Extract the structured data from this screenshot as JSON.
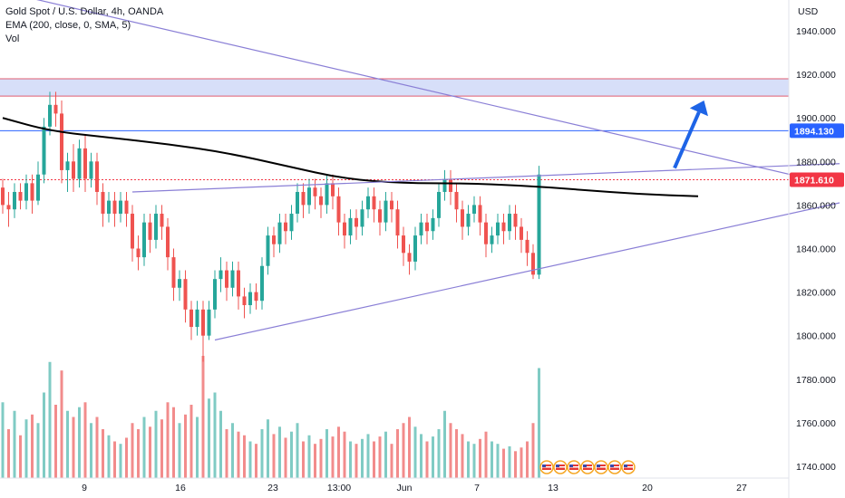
{
  "legend": {
    "symbol": "Gold Spot / U.S. Dollar, 4h, OANDA",
    "indicator": "EMA (200, close, 0, SMA, 5)",
    "volume": "Vol"
  },
  "currency_label": "USD",
  "colors": {
    "up": "#26a69a",
    "down": "#ef5350",
    "vol_up": "#80cbc4",
    "vol_down": "#f28c8c",
    "ema": "#000000",
    "trendline": "#8a7fd6",
    "zone_fill": "#c9d4f7",
    "zone_border": "#e05c70",
    "level_line": "#2962ff",
    "arrow": "#1e64e6",
    "last_price_tag": "#f23645",
    "level_tag": "#2962ff"
  },
  "chart_data": {
    "type": "candlestick",
    "y_axis": {
      "ticks": [
        "1940.000",
        "1920.000",
        "1900.000",
        "1880.000",
        "1860.000",
        "1840.000",
        "1820.000",
        "1800.000",
        "1780.000",
        "1760.000",
        "1740.000"
      ]
    },
    "x_axis": {
      "ticks": [
        "9",
        "16",
        "23",
        "13:00",
        "Jun",
        "7",
        "13",
        "20",
        "27"
      ]
    },
    "price_tags": [
      {
        "label": "1894.130",
        "price": 1894.13,
        "kind": "level"
      },
      {
        "label": "1871.610",
        "price": 1871.61,
        "kind": "last"
      }
    ],
    "resistance_zone": [
      1910,
      1918
    ],
    "ema_points": [
      [
        0,
        1900
      ],
      [
        8,
        1894
      ],
      [
        18,
        1891
      ],
      [
        28,
        1888
      ],
      [
        38,
        1884
      ],
      [
        48,
        1878
      ],
      [
        58,
        1872
      ],
      [
        68,
        1870
      ],
      [
        78,
        1870
      ],
      [
        88,
        1869
      ],
      [
        98,
        1867
      ],
      [
        108,
        1865
      ],
      [
        118,
        1864
      ]
    ],
    "candles": [
      [
        1868,
        1860,
        1872,
        1856
      ],
      [
        1860,
        1858,
        1866,
        1850
      ],
      [
        1858,
        1866,
        1870,
        1854
      ],
      [
        1866,
        1862,
        1870,
        1858
      ],
      [
        1862,
        1870,
        1874,
        1858
      ],
      [
        1870,
        1862,
        1874,
        1856
      ],
      [
        1862,
        1874,
        1880,
        1860
      ],
      [
        1874,
        1896,
        1900,
        1870
      ],
      [
        1896,
        1906,
        1912,
        1892
      ],
      [
        1906,
        1902,
        1912,
        1896
      ],
      [
        1902,
        1876,
        1908,
        1870
      ],
      [
        1876,
        1880,
        1884,
        1866
      ],
      [
        1880,
        1872,
        1888,
        1866
      ],
      [
        1872,
        1886,
        1890,
        1868
      ],
      [
        1886,
        1872,
        1892,
        1866
      ],
      [
        1872,
        1880,
        1884,
        1868
      ],
      [
        1880,
        1866,
        1884,
        1860
      ],
      [
        1866,
        1856,
        1870,
        1850
      ],
      [
        1856,
        1862,
        1866,
        1852
      ],
      [
        1862,
        1856,
        1866,
        1850
      ],
      [
        1856,
        1862,
        1866,
        1852
      ],
      [
        1862,
        1856,
        1866,
        1850
      ],
      [
        1856,
        1840,
        1860,
        1834
      ],
      [
        1840,
        1836,
        1846,
        1830
      ],
      [
        1836,
        1852,
        1856,
        1832
      ],
      [
        1852,
        1844,
        1856,
        1838
      ],
      [
        1844,
        1856,
        1860,
        1840
      ],
      [
        1856,
        1850,
        1860,
        1844
      ],
      [
        1850,
        1836,
        1854,
        1830
      ],
      [
        1836,
        1822,
        1840,
        1816
      ],
      [
        1822,
        1826,
        1830,
        1816
      ],
      [
        1826,
        1812,
        1830,
        1806
      ],
      [
        1812,
        1804,
        1816,
        1798
      ],
      [
        1804,
        1812,
        1816,
        1800
      ],
      [
        1812,
        1800,
        1816,
        1788
      ],
      [
        1800,
        1812,
        1816,
        1798
      ],
      [
        1812,
        1826,
        1830,
        1808
      ],
      [
        1826,
        1830,
        1836,
        1820
      ],
      [
        1830,
        1822,
        1834,
        1816
      ],
      [
        1822,
        1830,
        1834,
        1818
      ],
      [
        1830,
        1818,
        1834,
        1812
      ],
      [
        1818,
        1814,
        1822,
        1808
      ],
      [
        1814,
        1820,
        1824,
        1810
      ],
      [
        1820,
        1816,
        1824,
        1812
      ],
      [
        1816,
        1832,
        1836,
        1812
      ],
      [
        1832,
        1846,
        1850,
        1828
      ],
      [
        1846,
        1842,
        1850,
        1836
      ],
      [
        1842,
        1852,
        1856,
        1838
      ],
      [
        1852,
        1848,
        1856,
        1842
      ],
      [
        1848,
        1856,
        1860,
        1844
      ],
      [
        1856,
        1866,
        1870,
        1852
      ],
      [
        1866,
        1860,
        1870,
        1854
      ],
      [
        1860,
        1868,
        1872,
        1856
      ],
      [
        1868,
        1864,
        1872,
        1858
      ],
      [
        1864,
        1860,
        1868,
        1854
      ],
      [
        1860,
        1870,
        1874,
        1856
      ],
      [
        1870,
        1864,
        1874,
        1858
      ],
      [
        1864,
        1852,
        1868,
        1846
      ],
      [
        1852,
        1846,
        1856,
        1840
      ],
      [
        1846,
        1854,
        1858,
        1842
      ],
      [
        1854,
        1850,
        1858,
        1844
      ],
      [
        1850,
        1858,
        1862,
        1846
      ],
      [
        1858,
        1864,
        1868,
        1854
      ],
      [
        1864,
        1858,
        1868,
        1852
      ],
      [
        1858,
        1852,
        1862,
        1846
      ],
      [
        1852,
        1862,
        1866,
        1848
      ],
      [
        1862,
        1858,
        1866,
        1852
      ],
      [
        1858,
        1846,
        1862,
        1840
      ],
      [
        1846,
        1838,
        1850,
        1832
      ],
      [
        1838,
        1834,
        1842,
        1828
      ],
      [
        1834,
        1846,
        1850,
        1830
      ],
      [
        1846,
        1852,
        1856,
        1842
      ],
      [
        1852,
        1848,
        1856,
        1842
      ],
      [
        1848,
        1854,
        1858,
        1844
      ],
      [
        1854,
        1866,
        1870,
        1850
      ],
      [
        1866,
        1872,
        1876,
        1862
      ],
      [
        1872,
        1866,
        1876,
        1860
      ],
      [
        1866,
        1858,
        1870,
        1852
      ],
      [
        1858,
        1850,
        1862,
        1844
      ],
      [
        1850,
        1856,
        1860,
        1846
      ],
      [
        1856,
        1860,
        1864,
        1852
      ],
      [
        1860,
        1852,
        1864,
        1846
      ],
      [
        1852,
        1842,
        1856,
        1836
      ],
      [
        1842,
        1846,
        1850,
        1838
      ],
      [
        1846,
        1852,
        1856,
        1842
      ],
      [
        1852,
        1848,
        1856,
        1842
      ],
      [
        1848,
        1856,
        1860,
        1844
      ],
      [
        1856,
        1850,
        1860,
        1844
      ],
      [
        1850,
        1844,
        1854,
        1838
      ],
      [
        1844,
        1838,
        1848,
        1832
      ],
      [
        1838,
        1828,
        1842,
        1826
      ],
      [
        1828,
        1874,
        1878,
        1826
      ]
    ],
    "volumes": [
      [
        0.62,
        "up"
      ],
      [
        0.4,
        "down"
      ],
      [
        0.55,
        "up"
      ],
      [
        0.35,
        "down"
      ],
      [
        0.48,
        "up"
      ],
      [
        0.52,
        "down"
      ],
      [
        0.45,
        "up"
      ],
      [
        0.7,
        "up"
      ],
      [
        0.95,
        "up"
      ],
      [
        0.6,
        "down"
      ],
      [
        0.88,
        "down"
      ],
      [
        0.55,
        "up"
      ],
      [
        0.5,
        "down"
      ],
      [
        0.58,
        "up"
      ],
      [
        0.62,
        "down"
      ],
      [
        0.45,
        "up"
      ],
      [
        0.5,
        "down"
      ],
      [
        0.4,
        "down"
      ],
      [
        0.35,
        "up"
      ],
      [
        0.3,
        "down"
      ],
      [
        0.28,
        "up"
      ],
      [
        0.33,
        "down"
      ],
      [
        0.45,
        "down"
      ],
      [
        0.4,
        "down"
      ],
      [
        0.5,
        "up"
      ],
      [
        0.42,
        "down"
      ],
      [
        0.55,
        "up"
      ],
      [
        0.48,
        "down"
      ],
      [
        0.62,
        "down"
      ],
      [
        0.58,
        "down"
      ],
      [
        0.45,
        "up"
      ],
      [
        0.52,
        "down"
      ],
      [
        0.6,
        "down"
      ],
      [
        0.5,
        "up"
      ],
      [
        1.0,
        "down"
      ],
      [
        0.65,
        "up"
      ],
      [
        0.7,
        "up"
      ],
      [
        0.55,
        "up"
      ],
      [
        0.4,
        "down"
      ],
      [
        0.45,
        "up"
      ],
      [
        0.38,
        "down"
      ],
      [
        0.35,
        "down"
      ],
      [
        0.3,
        "up"
      ],
      [
        0.28,
        "down"
      ],
      [
        0.4,
        "up"
      ],
      [
        0.48,
        "up"
      ],
      [
        0.36,
        "down"
      ],
      [
        0.42,
        "up"
      ],
      [
        0.33,
        "down"
      ],
      [
        0.38,
        "up"
      ],
      [
        0.45,
        "up"
      ],
      [
        0.3,
        "down"
      ],
      [
        0.35,
        "up"
      ],
      [
        0.28,
        "down"
      ],
      [
        0.32,
        "down"
      ],
      [
        0.4,
        "up"
      ],
      [
        0.34,
        "down"
      ],
      [
        0.42,
        "down"
      ],
      [
        0.38,
        "down"
      ],
      [
        0.3,
        "up"
      ],
      [
        0.28,
        "down"
      ],
      [
        0.32,
        "up"
      ],
      [
        0.36,
        "up"
      ],
      [
        0.3,
        "down"
      ],
      [
        0.34,
        "down"
      ],
      [
        0.38,
        "up"
      ],
      [
        0.28,
        "down"
      ],
      [
        0.4,
        "down"
      ],
      [
        0.45,
        "down"
      ],
      [
        0.5,
        "down"
      ],
      [
        0.42,
        "up"
      ],
      [
        0.36,
        "up"
      ],
      [
        0.3,
        "down"
      ],
      [
        0.34,
        "up"
      ],
      [
        0.4,
        "up"
      ],
      [
        0.55,
        "up"
      ],
      [
        0.45,
        "down"
      ],
      [
        0.4,
        "down"
      ],
      [
        0.36,
        "down"
      ],
      [
        0.3,
        "up"
      ],
      [
        0.28,
        "up"
      ],
      [
        0.32,
        "down"
      ],
      [
        0.38,
        "down"
      ],
      [
        0.3,
        "up"
      ],
      [
        0.28,
        "up"
      ],
      [
        0.24,
        "down"
      ],
      [
        0.26,
        "up"
      ],
      [
        0.22,
        "down"
      ],
      [
        0.25,
        "down"
      ],
      [
        0.3,
        "down"
      ],
      [
        0.45,
        "down"
      ],
      [
        0.9,
        "up"
      ]
    ],
    "event_icons": 7,
    "trendlines": [
      {
        "name": "upper-resistance",
        "from": [
          0,
          1958
        ],
        "to": [
          140,
          1870
        ]
      },
      {
        "name": "triangle-top",
        "from": [
          22,
          1866
        ],
        "to": [
          142,
          1879
        ]
      },
      {
        "name": "triangle-bottom",
        "from": [
          36,
          1798
        ],
        "to": [
          142,
          1861
        ]
      }
    ],
    "arrow": {
      "from": [
        114,
        1877
      ],
      "to": [
        119,
        1908
      ]
    }
  }
}
